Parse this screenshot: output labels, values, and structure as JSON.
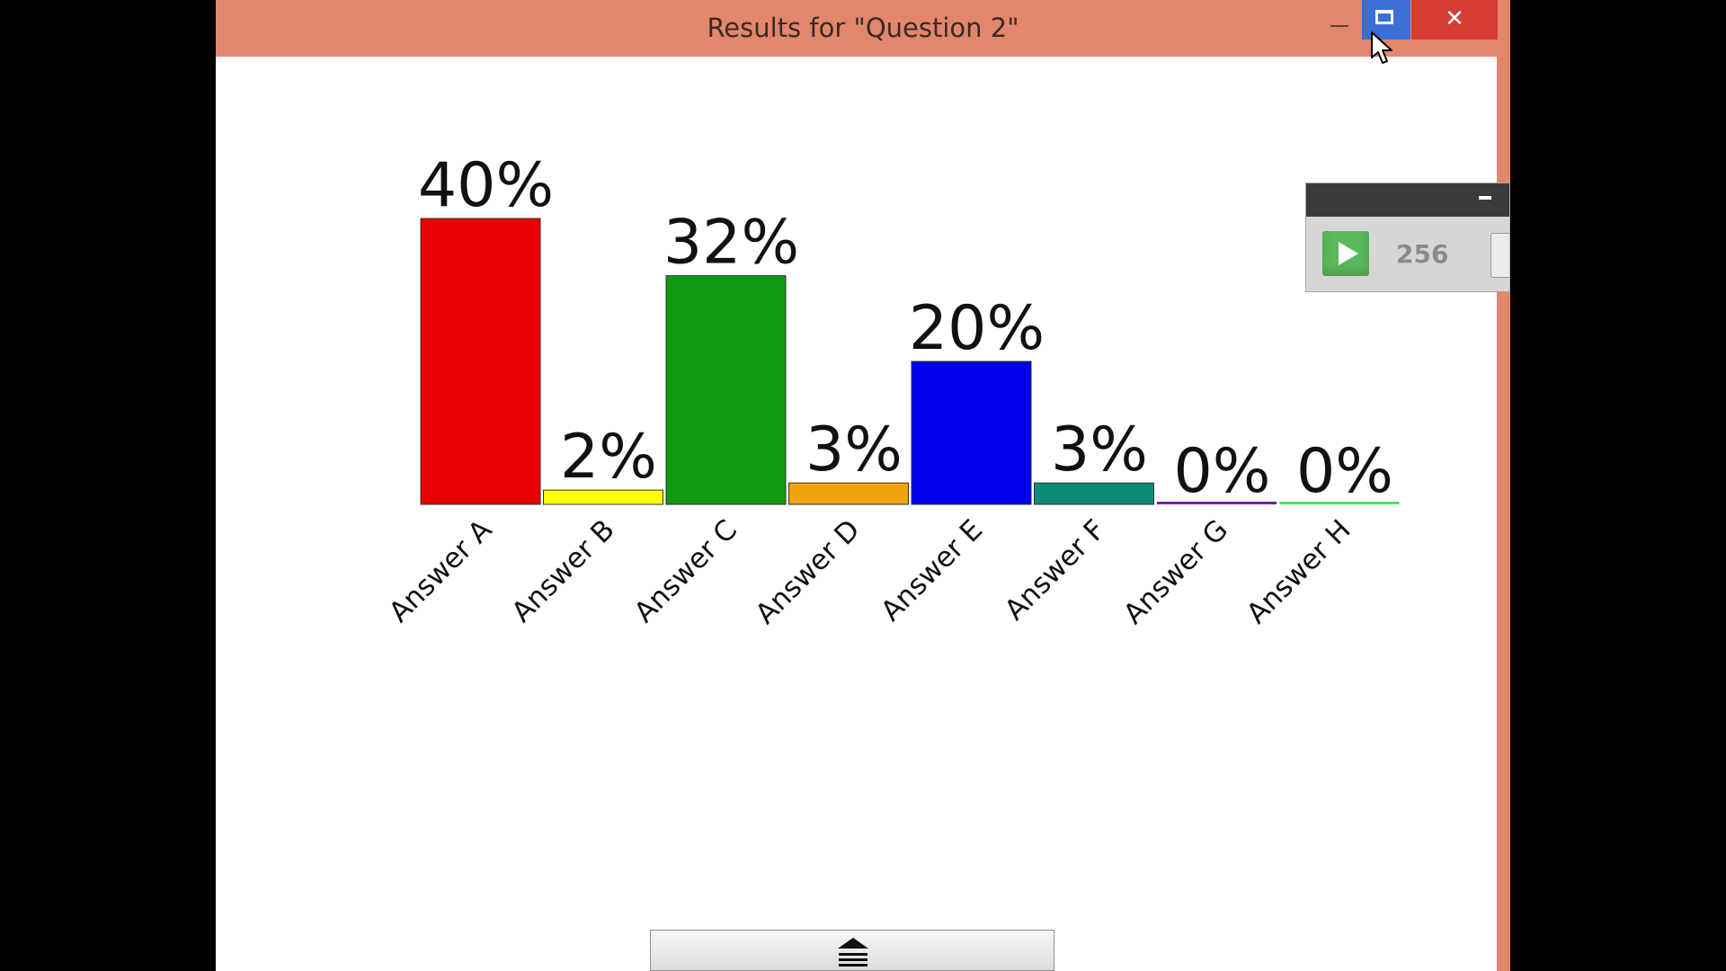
{
  "window": {
    "title": "Results for \"Question 2\"",
    "controls": {
      "minimize": "—",
      "maximize": "☐",
      "close": "✕"
    },
    "accent_color": "#e2876c"
  },
  "mini_widget": {
    "play_icon": "play-icon",
    "count": "256"
  },
  "bottom_handle": {
    "icon": "eject-menu-icon"
  },
  "chart_data": {
    "type": "bar",
    "categories": [
      "Answer A",
      "Answer B",
      "Answer C",
      "Answer D",
      "Answer E",
      "Answer F",
      "Answer G",
      "Answer H"
    ],
    "values": [
      40,
      2,
      32,
      3,
      20,
      3,
      0,
      0
    ],
    "value_labels": [
      "40%",
      "2%",
      "32%",
      "3%",
      "20%",
      "3%",
      "0%",
      "0%"
    ],
    "colors": [
      "#e60000",
      "#ffff00",
      "#0e9a0e",
      "#f2a20c",
      "#0000ee",
      "#0e8a7a",
      "#7a1aa0",
      "#44ee44"
    ],
    "title": "",
    "xlabel": "",
    "ylabel": "",
    "ylim": [
      0,
      40
    ],
    "grid": false,
    "legend": "none"
  }
}
